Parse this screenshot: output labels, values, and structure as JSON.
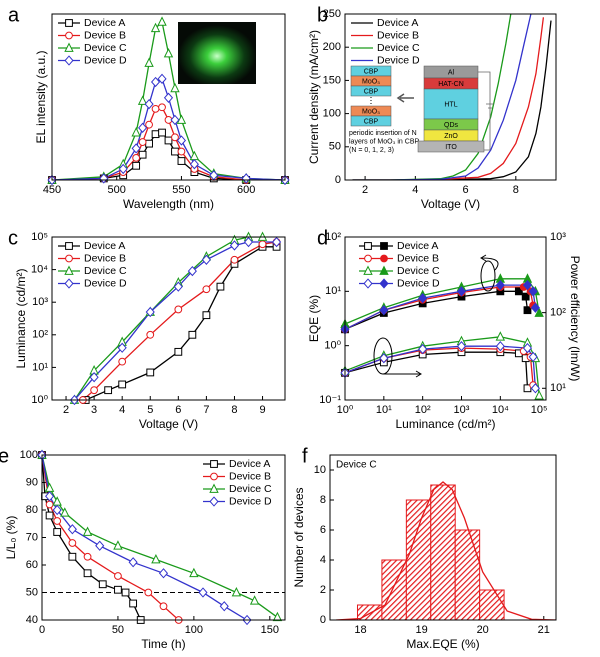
{
  "chart_data": [
    {
      "panel": "a",
      "type": "line",
      "xlabel": "Wavelength (nm)",
      "ylabel": "EL intensity (a.u.)",
      "xlim": [
        450,
        630
      ],
      "xticks": [
        450,
        500,
        550,
        600
      ],
      "ylim": [
        0,
        1.05
      ],
      "legend": "upper left",
      "x": [
        450,
        490,
        505,
        515,
        520,
        525,
        530,
        535,
        540,
        545,
        550,
        560,
        575,
        600,
        630
      ],
      "series": [
        {
          "name": "Device A",
          "color": "#000000",
          "marker": "square",
          "values": [
            0,
            0.01,
            0.03,
            0.09,
            0.16,
            0.23,
            0.29,
            0.3,
            0.25,
            0.18,
            0.12,
            0.05,
            0.01,
            0,
            0
          ]
        },
        {
          "name": "Device B",
          "color": "#e41a1c",
          "marker": "circle",
          "values": [
            0,
            0.01,
            0.05,
            0.14,
            0.24,
            0.35,
            0.45,
            0.46,
            0.38,
            0.27,
            0.18,
            0.07,
            0.02,
            0,
            0
          ]
        },
        {
          "name": "Device C",
          "color": "#1a9a1a",
          "marker": "triangle",
          "values": [
            0,
            0.02,
            0.1,
            0.3,
            0.5,
            0.74,
            0.96,
            1.0,
            0.8,
            0.58,
            0.38,
            0.15,
            0.04,
            0.01,
            0
          ]
        },
        {
          "name": "Device D",
          "color": "#3333cc",
          "marker": "diamond",
          "values": [
            0,
            0.01,
            0.07,
            0.2,
            0.33,
            0.48,
            0.62,
            0.64,
            0.52,
            0.38,
            0.25,
            0.1,
            0.03,
            0.01,
            0
          ]
        }
      ]
    },
    {
      "panel": "b",
      "type": "line",
      "xlabel": "Voltage (V)",
      "ylabel": "Current density (mA/cm²)",
      "xlim": [
        1.2,
        9.6
      ],
      "xticks": [
        2,
        4,
        6,
        8
      ],
      "ylim": [
        0,
        250
      ],
      "yticks": [
        0,
        50,
        100,
        150,
        200,
        250
      ],
      "legend": "upper left",
      "series": [
        {
          "name": "Device A",
          "color": "#000000",
          "x": [
            1.5,
            3,
            5,
            7,
            7.5,
            8,
            8.5,
            8.8,
            9,
            9.2,
            9.4
          ],
          "values": [
            0,
            0,
            0,
            2,
            5,
            12,
            35,
            70,
            110,
            170,
            240
          ]
        },
        {
          "name": "Device B",
          "color": "#e41a1c",
          "x": [
            1.5,
            3,
            5,
            6.5,
            7,
            7.5,
            8,
            8.5,
            8.8,
            9,
            9.1
          ],
          "values": [
            0,
            0,
            1,
            4,
            10,
            25,
            55,
            110,
            160,
            215,
            245
          ]
        },
        {
          "name": "Device C",
          "color": "#1a9a1a",
          "x": [
            1.5,
            3,
            5,
            5.5,
            6,
            6.5,
            7,
            7.3,
            7.6,
            7.8
          ],
          "values": [
            0,
            0,
            2,
            6,
            15,
            40,
            95,
            145,
            205,
            250
          ]
        },
        {
          "name": "Device D",
          "color": "#3333cc",
          "x": [
            1.5,
            3,
            5,
            6,
            6.5,
            7,
            7.5,
            8,
            8.3,
            8.6
          ],
          "values": [
            0,
            0,
            1,
            6,
            18,
            45,
            90,
            150,
            200,
            250
          ]
        }
      ],
      "inset_stack": [
        "CBP",
        "MoO₃",
        "CBP",
        "MoO₃",
        "CBP"
      ],
      "inset_layers": [
        "Al",
        "HAT-CN",
        "HTL",
        "QDs",
        "ZnO",
        "ITO"
      ],
      "inset_note": [
        "periodic insertion of N",
        "layers of MoO₃ in CBP",
        "(N = 0, 1, 2, 3)"
      ]
    },
    {
      "panel": "c",
      "type": "line",
      "xlabel": "Voltage (V)",
      "ylabel": "Luminance (cd/m²)",
      "xlim": [
        1.5,
        9.8
      ],
      "xticks": [
        2,
        3,
        4,
        5,
        6,
        7,
        8,
        9
      ],
      "ylim": [
        1,
        100000
      ],
      "yscale": "log",
      "yticks": [
        {
          "value": 1,
          "label": "10⁰"
        },
        {
          "value": 10,
          "label": "10¹"
        },
        {
          "value": 100,
          "label": "10²"
        },
        {
          "value": 1000,
          "label": "10³"
        },
        {
          "value": 10000,
          "label": "10⁴"
        },
        {
          "value": 100000,
          "label": "10⁵"
        }
      ],
      "legend": "upper left",
      "series": [
        {
          "name": "Device A",
          "color": "#000000",
          "marker": "square",
          "x": [
            2.7,
            3.5,
            4,
            5,
            6,
            6.5,
            7,
            7.5,
            8,
            9,
            9.5
          ],
          "values": [
            1,
            2,
            3,
            7,
            30,
            100,
            400,
            3000,
            15000,
            50000,
            50000
          ]
        },
        {
          "name": "Device B",
          "color": "#e41a1c",
          "marker": "circle",
          "x": [
            2.6,
            3,
            4,
            5,
            6,
            7,
            8,
            9,
            9.5
          ],
          "values": [
            1,
            2,
            15,
            100,
            600,
            2500,
            20000,
            60000,
            70000
          ]
        },
        {
          "name": "Device C",
          "color": "#1a9a1a",
          "marker": "triangle",
          "x": [
            2.3,
            3,
            4,
            5,
            6,
            7,
            8,
            8.5,
            9
          ],
          "values": [
            1,
            8,
            60,
            500,
            4000,
            25000,
            80000,
            100000,
            100000
          ]
        },
        {
          "name": "Device D",
          "color": "#3333cc",
          "marker": "diamond",
          "x": [
            2.3,
            3,
            4,
            5,
            6,
            6.5,
            7,
            8,
            8.5,
            9.5
          ],
          "values": [
            1,
            5,
            40,
            500,
            3000,
            9000,
            20000,
            55000,
            70000,
            70000
          ]
        }
      ]
    },
    {
      "panel": "d",
      "type": "line",
      "xlabel": "Luminance (cd/m²)",
      "ylabel": "EQE (%)",
      "y2label": "Power efficiency (lm/W)",
      "xlim": [
        1,
        150000
      ],
      "xscale": "log",
      "xticks": [
        {
          "value": 1,
          "label": "10⁰"
        },
        {
          "value": 10,
          "label": "10¹"
        },
        {
          "value": 100,
          "label": "10²"
        },
        {
          "value": 1000,
          "label": "10³"
        },
        {
          "value": 10000,
          "label": "10⁴"
        },
        {
          "value": 100000,
          "label": "10⁵"
        }
      ],
      "ylim": [
        0.1,
        100
      ],
      "yscale": "log",
      "yticks": [
        {
          "value": 0.1,
          "label": "10⁻¹"
        },
        {
          "value": 1,
          "label": "10⁰"
        },
        {
          "value": 10,
          "label": "10¹"
        },
        {
          "value": 100,
          "label": "10²"
        }
      ],
      "y2lim": [
        7,
        1000
      ],
      "y2scale": "log",
      "y2ticks": [
        {
          "value": 10,
          "label": "10¹"
        },
        {
          "value": 100,
          "label": "10²"
        },
        {
          "value": 1000,
          "label": "10³"
        }
      ],
      "legend": "upper left",
      "series": [
        {
          "name": "Device A",
          "color": "#000000",
          "marker": "square",
          "filled": true,
          "x": [
            1,
            10,
            100,
            1000,
            10000,
            30000,
            45000,
            50000
          ],
          "values": [
            2,
            4,
            6,
            8,
            10,
            10,
            8,
            4.5
          ]
        },
        {
          "name": "Device B",
          "color": "#e41a1c",
          "marker": "circle",
          "filled": true,
          "x": [
            1,
            10,
            100,
            1000,
            10000,
            40000,
            60000,
            70000
          ],
          "values": [
            2,
            4.5,
            7,
            9.5,
            12,
            12,
            10,
            5.5
          ]
        },
        {
          "name": "Device C",
          "color": "#1a9a1a",
          "marker": "triangle",
          "filled": true,
          "x": [
            1,
            10,
            100,
            1000,
            10000,
            50000,
            80000,
            100000
          ],
          "values": [
            2.5,
            5,
            8.5,
            12,
            17,
            17,
            10,
            4
          ]
        },
        {
          "name": "Device D",
          "color": "#3333cc",
          "marker": "diamond",
          "filled": true,
          "x": [
            1,
            10,
            100,
            1000,
            10000,
            50000,
            70000,
            80000
          ],
          "values": [
            2,
            4.5,
            7.5,
            10,
            13,
            13,
            10,
            5
          ]
        },
        {
          "color": "#000000",
          "marker": "square",
          "axis": "y2",
          "x": [
            1,
            10,
            100,
            1000,
            10000,
            30000,
            45000,
            50000
          ],
          "values": [
            16,
            22,
            28,
            30,
            30,
            29,
            25,
            10
          ]
        },
        {
          "color": "#e41a1c",
          "marker": "circle",
          "axis": "y2",
          "x": [
            1,
            10,
            100,
            1000,
            10000,
            40000,
            60000,
            70000
          ],
          "values": [
            16,
            25,
            32,
            34,
            33,
            31,
            26,
            11
          ]
        },
        {
          "color": "#1a9a1a",
          "marker": "triangle",
          "axis": "y2",
          "x": [
            1,
            10,
            100,
            1000,
            10000,
            50000,
            80000,
            100000
          ],
          "values": [
            17,
            27,
            36,
            42,
            48,
            40,
            25,
            8
          ]
        },
        {
          "color": "#3333cc",
          "marker": "diamond",
          "axis": "y2",
          "x": [
            1,
            10,
            100,
            1000,
            10000,
            50000,
            70000,
            80000
          ],
          "values": [
            16,
            25,
            33,
            36,
            36,
            34,
            26,
            10
          ]
        }
      ]
    },
    {
      "panel": "e",
      "type": "line",
      "xlabel": "Time (h)",
      "ylabel": "L/L₀ (%)",
      "xlim": [
        0,
        160
      ],
      "xticks": [
        0,
        50,
        100,
        150
      ],
      "ylim": [
        40,
        100
      ],
      "yticks": [
        40,
        50,
        60,
        70,
        80,
        90,
        100
      ],
      "legend": "upper right",
      "hline": 50,
      "series": [
        {
          "name": "Device A",
          "color": "#000000",
          "marker": "square",
          "x": [
            0,
            2,
            5,
            10,
            20,
            30,
            40,
            50,
            55,
            60,
            65
          ],
          "values": [
            100,
            85,
            78,
            72,
            63,
            57,
            53,
            51,
            50,
            46,
            40
          ]
        },
        {
          "name": "Device B",
          "color": "#e41a1c",
          "marker": "circle",
          "x": [
            0,
            5,
            10,
            20,
            30,
            50,
            70,
            80,
            90
          ],
          "values": [
            100,
            82,
            76,
            68,
            63,
            56,
            50,
            45,
            40
          ]
        },
        {
          "name": "Device C",
          "color": "#1a9a1a",
          "marker": "triangle",
          "x": [
            0,
            5,
            10,
            15,
            30,
            50,
            75,
            100,
            128,
            140,
            155
          ],
          "values": [
            100,
            88,
            83,
            79,
            72,
            67,
            62,
            57,
            50,
            47,
            41
          ]
        },
        {
          "name": "Device D",
          "color": "#3333cc",
          "marker": "diamond",
          "x": [
            0,
            5,
            10,
            20,
            38,
            60,
            80,
            106,
            120,
            135
          ],
          "values": [
            100,
            85,
            80,
            73,
            67,
            61,
            57,
            50,
            45,
            40
          ]
        }
      ]
    },
    {
      "panel": "f",
      "type": "histogram",
      "xlabel": "Max.EQE (%)",
      "ylabel": "Number of devices",
      "annotation": "Device C",
      "xlim": [
        17.5,
        21.2
      ],
      "xticks": [
        18,
        19,
        20,
        21
      ],
      "ylim": [
        0,
        11
      ],
      "yticks": [
        0,
        2,
        4,
        6,
        8,
        10
      ],
      "color": "#e41a1c",
      "bins": [
        17.95,
        18.35,
        18.75,
        19.15,
        19.55,
        19.95,
        20.35
      ],
      "counts": [
        1,
        4,
        8,
        9,
        6,
        2
      ],
      "fit": {
        "x": [
          17.6,
          18,
          18.4,
          18.8,
          19,
          19.2,
          19.35,
          19.5,
          19.7,
          20,
          20.4,
          20.8,
          21.2
        ],
        "values": [
          0,
          0.1,
          1.0,
          4.4,
          6.8,
          8.7,
          9.2,
          8.7,
          6.8,
          3.2,
          0.6,
          0.05,
          0
        ]
      }
    }
  ]
}
